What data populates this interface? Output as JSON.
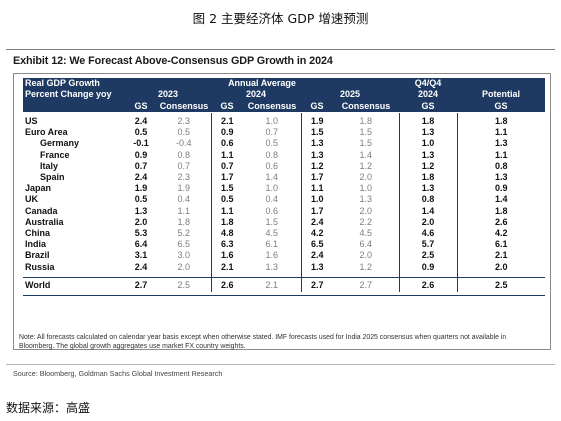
{
  "page_title": "图 2 主要经济体 GDP 增速预测",
  "exhibit_title": "Exhibit 12: We Forecast Above-Consensus GDP Growth in 2024",
  "header": {
    "row1": {
      "label": "Real GDP Growth",
      "annual": "Annual Average",
      "q4": "Q4/Q4"
    },
    "row2": {
      "label": "Percent Change yoy",
      "y2023": "2023",
      "y2024": "2024",
      "y2025": "2025",
      "q4_year": "2024",
      "potential": "Potential"
    },
    "row3": {
      "gs": "GS",
      "consensus": "Consensus"
    }
  },
  "rows": [
    {
      "name": "US",
      "sub": false,
      "v": [
        "2.4",
        "2.3",
        "2.1",
        "1.0",
        "1.9",
        "1.8",
        "1.8",
        "1.8"
      ]
    },
    {
      "name": "Euro Area",
      "sub": false,
      "v": [
        "0.5",
        "0.5",
        "0.9",
        "0.7",
        "1.5",
        "1.5",
        "1.3",
        "1.1"
      ]
    },
    {
      "name": "Germany",
      "sub": true,
      "v": [
        "-0.1",
        "-0.4",
        "0.6",
        "0.5",
        "1.3",
        "1.5",
        "1.0",
        "1.3"
      ]
    },
    {
      "name": "France",
      "sub": true,
      "v": [
        "0.9",
        "0.8",
        "1.1",
        "0.8",
        "1.3",
        "1.4",
        "1.3",
        "1.1"
      ]
    },
    {
      "name": "Italy",
      "sub": true,
      "v": [
        "0.7",
        "0.7",
        "0.7",
        "0.6",
        "1.2",
        "1.2",
        "1.2",
        "0.8"
      ]
    },
    {
      "name": "Spain",
      "sub": true,
      "v": [
        "2.4",
        "2.3",
        "1.7",
        "1.4",
        "1.7",
        "2.0",
        "1.8",
        "1.3"
      ]
    },
    {
      "name": "Japan",
      "sub": false,
      "v": [
        "1.9",
        "1.9",
        "1.5",
        "1.0",
        "1.1",
        "1.0",
        "1.3",
        "0.9"
      ]
    },
    {
      "name": "UK",
      "sub": false,
      "v": [
        "0.5",
        "0.4",
        "0.5",
        "0.4",
        "1.0",
        "1.3",
        "0.8",
        "1.4"
      ]
    },
    {
      "name": "Canada",
      "sub": false,
      "v": [
        "1.3",
        "1.1",
        "1.1",
        "0.6",
        "1.7",
        "2.0",
        "1.4",
        "1.8"
      ]
    },
    {
      "name": "Australia",
      "sub": false,
      "v": [
        "2.0",
        "1.8",
        "1.8",
        "1.5",
        "2.4",
        "2.2",
        "2.0",
        "2.6"
      ]
    },
    {
      "name": "China",
      "sub": false,
      "v": [
        "5.3",
        "5.2",
        "4.8",
        "4.5",
        "4.2",
        "4.5",
        "4.6",
        "4.2"
      ]
    },
    {
      "name": "India",
      "sub": false,
      "v": [
        "6.4",
        "6.5",
        "6.3",
        "6.1",
        "6.5",
        "6.4",
        "5.7",
        "6.1"
      ]
    },
    {
      "name": "Brazil",
      "sub": false,
      "v": [
        "3.1",
        "3.0",
        "1.6",
        "1.6",
        "2.4",
        "2.0",
        "2.5",
        "2.1"
      ]
    },
    {
      "name": "Russia",
      "sub": false,
      "v": [
        "2.4",
        "2.0",
        "2.1",
        "1.3",
        "1.3",
        "1.2",
        "0.9",
        "2.0"
      ]
    }
  ],
  "world": {
    "name": "World",
    "v": [
      "2.7",
      "2.5",
      "2.6",
      "2.1",
      "2.7",
      "2.7",
      "2.6",
      "2.5"
    ]
  },
  "note": "Note: All forecasts calculated on calendar year basis except when otherwise stated. IMF forecasts used for India 2025 consensus when quarters not available in Bloomberg. The global growth aggregates use market FX country weights.",
  "source": "Source: Bloomberg, Goldman Sachs Global Investment Research",
  "data_source": "数据来源：高盛",
  "colors": {
    "header_bg": "#1e3a63",
    "consensus_text": "#7d7d7d"
  }
}
